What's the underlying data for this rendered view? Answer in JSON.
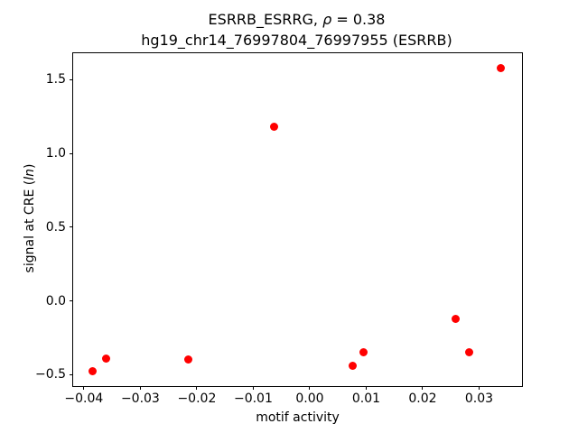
{
  "figure": {
    "title": {
      "line1_prefix": "ESRRB_ESRRG, ",
      "line1_rho": "ρ",
      "line1_suffix": " = 0.38",
      "line2": "hg19_chr14_76997804_76997955 (ESRRB)"
    }
  },
  "chart_data": {
    "type": "scatter",
    "title": "ESRRB_ESRRG, ρ = 0.38\nhg19_chr14_76997804_76997955 (ESRRB)",
    "xlabel": "motif activity",
    "ylabel": "signal at CRE (ln)",
    "ylabel_parts": {
      "prefix": "signal at CRE (",
      "italic": "ln",
      "suffix": ")"
    },
    "marker_color": "#ff0000",
    "grid": false,
    "legend": null,
    "xlim": [
      -0.0419,
      0.0376
    ],
    "ylim": [
      -0.578,
      1.679
    ],
    "xticks": [
      {
        "value": -0.04,
        "label": "−0.04"
      },
      {
        "value": -0.03,
        "label": "−0.03"
      },
      {
        "value": -0.02,
        "label": "−0.02"
      },
      {
        "value": -0.01,
        "label": "−0.01"
      },
      {
        "value": 0.0,
        "label": "0.00"
      },
      {
        "value": 0.01,
        "label": "0.01"
      },
      {
        "value": 0.02,
        "label": "0.02"
      },
      {
        "value": 0.03,
        "label": "0.03"
      }
    ],
    "yticks": [
      {
        "value": -0.5,
        "label": "−0.5"
      },
      {
        "value": 0.0,
        "label": "0.0"
      },
      {
        "value": 0.5,
        "label": "0.5"
      },
      {
        "value": 1.0,
        "label": "1.0"
      },
      {
        "value": 1.5,
        "label": "1.5"
      }
    ],
    "points": [
      [
        -0.0384,
        -0.48
      ],
      [
        -0.036,
        -0.39
      ],
      [
        -0.0215,
        -0.4
      ],
      [
        -0.0063,
        1.18
      ],
      [
        0.0076,
        -0.44
      ],
      [
        0.0096,
        -0.35
      ],
      [
        0.0259,
        -0.12
      ],
      [
        0.0282,
        -0.35
      ],
      [
        0.0338,
        1.58
      ]
    ]
  }
}
